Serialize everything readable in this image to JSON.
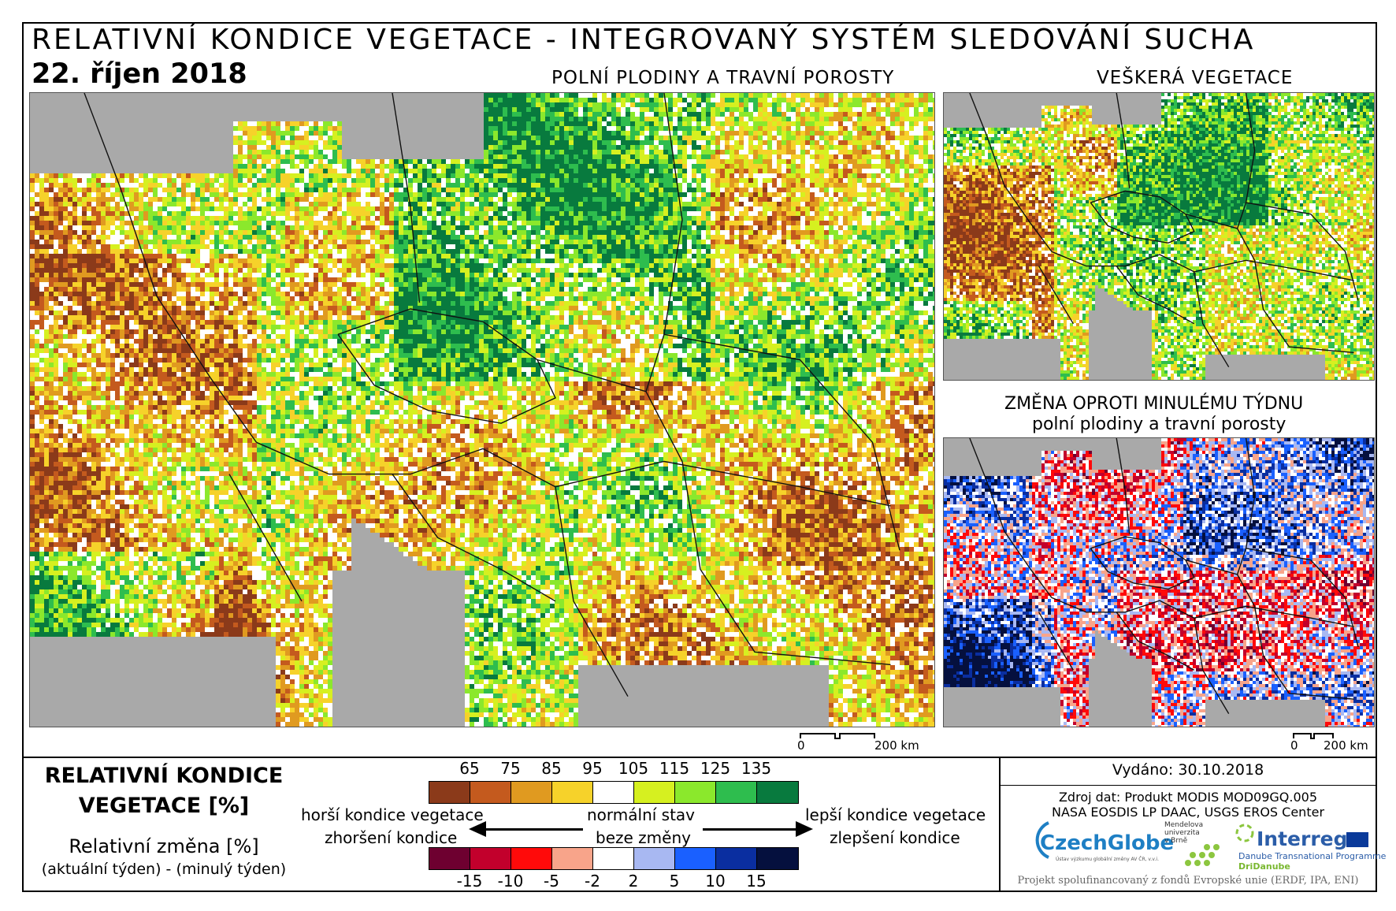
{
  "header": {
    "title": "RELATIVNÍ KONDICE VEGETACE - INTEGROVANÝ SYSTÉM SLEDOVÁNÍ SUCHA",
    "date": "22. říjen 2018"
  },
  "maps": {
    "main_title": "POLNÍ PLODINY A TRAVNÍ POROSTY",
    "all_veg_title": "VEŠKERÁ VEGETACE",
    "change_title_1": "ZMĚNA OPROTI MINULÉMU TÝDNU",
    "change_title_2": "polní plodiny a travní porosty",
    "scale_zero": "0",
    "scale_main": "200 km",
    "scale_small": "200 km"
  },
  "legend": {
    "title_line1": "RELATIVNÍ KONDICE",
    "title_line2": "VEGETACE [%]",
    "sub_title": "Relativní změna [%]",
    "sub_note": "(aktuální týden) - (minulý týden)",
    "condition_ticks": [
      "65",
      "75",
      "85",
      "95",
      "105",
      "115",
      "125",
      "135"
    ],
    "condition_colors": [
      "#8b3a1a",
      "#c45a1e",
      "#e09a20",
      "#f6d22a",
      "#ffffff",
      "#d6f020",
      "#8be82c",
      "#2ebd4e",
      "#087a3e"
    ],
    "change_ticks": [
      "-15",
      "-10",
      "-5",
      "-2",
      "2",
      "5",
      "10",
      "15"
    ],
    "change_colors": [
      "#6e0030",
      "#c2002c",
      "#ff0a0a",
      "#f8a48a",
      "#ffffff",
      "#a8b8f2",
      "#1a60ff",
      "#0a2ea0",
      "#05103e"
    ],
    "worse": "horší kondice vegetace",
    "worse_change": "zhoršení kondice",
    "normal": "normální stav",
    "no_change": "beze změny",
    "better": "lepší kondice vegetace",
    "better_change": "zlepšení kondice"
  },
  "info": {
    "issued": "Vydáno: 30.10.2018",
    "source_1": "Zdroj dat: Produkt MODIS MOD09GQ.005",
    "source_2": "NASA EOSDIS LP DAAC, USGS EROS Center",
    "czechglobe": "CzechGlobe",
    "czechglobe_sub": "Ústav výzkumu globální změny AV ČR, v.v.i.",
    "mendel_1": "Mendelova",
    "mendel_2": "univerzita",
    "mendel_3": "v Brně",
    "interreg": "Interreg",
    "interreg_sub": "Danube Transnational Programme",
    "dridanube": "DriDanube",
    "footer": "Projekt spolufinancovaný z fondů Evropské unie (ERDF, IPA, ENI)"
  }
}
